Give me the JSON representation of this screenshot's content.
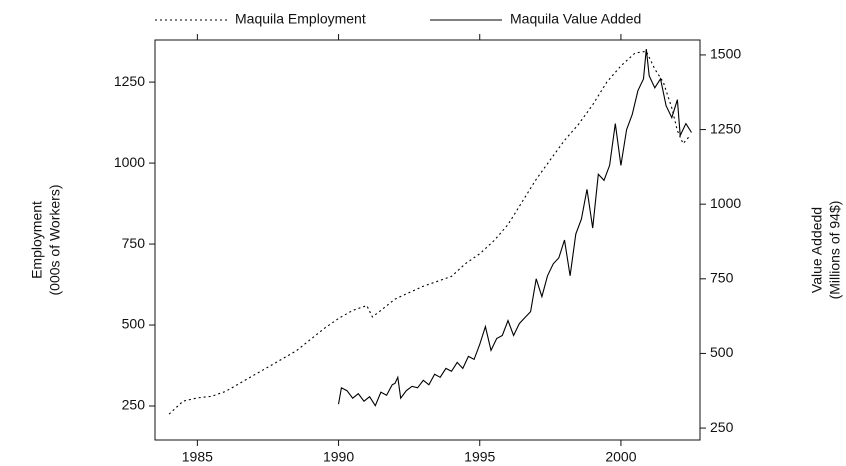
{
  "chart_data": {
    "type": "line",
    "ylabel": [
      "Employment",
      "(000s of Workers)"
    ],
    "y2label": [
      "Value Addedd",
      "(Millions of 94$)"
    ],
    "xlim": [
      1983.5,
      2002.8
    ],
    "xticks": [
      1985,
      1990,
      1995,
      2000
    ],
    "ylim": [
      145,
      1380
    ],
    "yticks": [
      250,
      500,
      750,
      1000,
      1250
    ],
    "y2lim": [
      210,
      1550
    ],
    "y2ticks": [
      250,
      500,
      750,
      1000,
      1250,
      1500
    ],
    "grid": false,
    "legend": "top",
    "series": [
      {
        "name": "Maquila Employment",
        "color": "#000000",
        "dash": "dotted",
        "x": [
          1984.0,
          1984.5,
          1985.0,
          1985.5,
          1986.0,
          1986.5,
          1987.0,
          1987.5,
          1988.0,
          1988.5,
          1989.0,
          1989.5,
          1990.0,
          1990.5,
          1991.0,
          1991.2,
          1991.5,
          1992.0,
          1992.5,
          1993.0,
          1993.5,
          1994.0,
          1994.5,
          1995.0,
          1995.5,
          1996.0,
          1996.5,
          1997.0,
          1997.5,
          1998.0,
          1998.5,
          1999.0,
          1999.5,
          2000.0,
          2000.5,
          2000.9,
          2001.2,
          2001.5,
          2001.8,
          2002.0,
          2002.2,
          2002.4
        ],
        "values": [
          225,
          265,
          275,
          280,
          295,
          320,
          345,
          370,
          395,
          420,
          455,
          490,
          520,
          545,
          560,
          525,
          545,
          580,
          600,
          620,
          635,
          650,
          690,
          720,
          760,
          810,
          880,
          950,
          1010,
          1070,
          1120,
          1180,
          1250,
          1300,
          1340,
          1345,
          1290,
          1250,
          1170,
          1100,
          1060,
          1080
        ]
      },
      {
        "name": "Maquila Value Added",
        "color": "#000000",
        "dash": "solid",
        "axis": "y2",
        "x": [
          1990.0,
          1990.1,
          1990.3,
          1990.5,
          1990.7,
          1990.9,
          1991.1,
          1991.3,
          1991.5,
          1991.7,
          1991.9,
          1992.0,
          1992.1,
          1992.2,
          1992.4,
          1992.6,
          1992.8,
          1993.0,
          1993.2,
          1993.4,
          1993.6,
          1993.8,
          1994.0,
          1994.2,
          1994.4,
          1994.6,
          1994.8,
          1995.0,
          1995.2,
          1995.4,
          1995.6,
          1995.8,
          1996.0,
          1996.2,
          1996.4,
          1996.6,
          1996.8,
          1997.0,
          1997.2,
          1997.4,
          1997.6,
          1997.8,
          1998.0,
          1998.2,
          1998.4,
          1998.6,
          1998.8,
          1999.0,
          1999.2,
          1999.4,
          1999.6,
          1999.8,
          2000.0,
          2000.2,
          2000.4,
          2000.6,
          2000.8,
          2000.9,
          2001.0,
          2001.2,
          2001.4,
          2001.6,
          2001.8,
          2002.0,
          2002.1,
          2002.3,
          2002.5
        ],
        "values": [
          330,
          385,
          375,
          350,
          365,
          340,
          355,
          325,
          370,
          360,
          395,
          400,
          420,
          350,
          375,
          390,
          385,
          410,
          395,
          430,
          420,
          450,
          440,
          470,
          450,
          490,
          480,
          530,
          590,
          510,
          550,
          560,
          610,
          560,
          600,
          620,
          640,
          750,
          690,
          760,
          800,
          820,
          880,
          760,
          900,
          950,
          1050,
          920,
          1100,
          1080,
          1130,
          1270,
          1130,
          1250,
          1300,
          1380,
          1420,
          1520,
          1430,
          1390,
          1420,
          1330,
          1290,
          1350,
          1230,
          1270,
          1240
        ]
      }
    ]
  }
}
